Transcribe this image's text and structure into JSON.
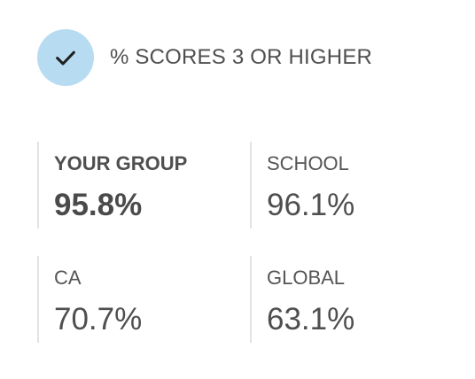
{
  "header": {
    "icon": "check-icon",
    "title": "% SCORES 3 OR HIGHER",
    "icon_bg_color": "#b7dcf2"
  },
  "stats": [
    {
      "label": "YOUR GROUP",
      "value": "95.8%"
    },
    {
      "label": "SCHOOL",
      "value": "96.1%"
    },
    {
      "label": "CA",
      "value": "70.7%"
    },
    {
      "label": "GLOBAL",
      "value": "63.1%"
    }
  ]
}
